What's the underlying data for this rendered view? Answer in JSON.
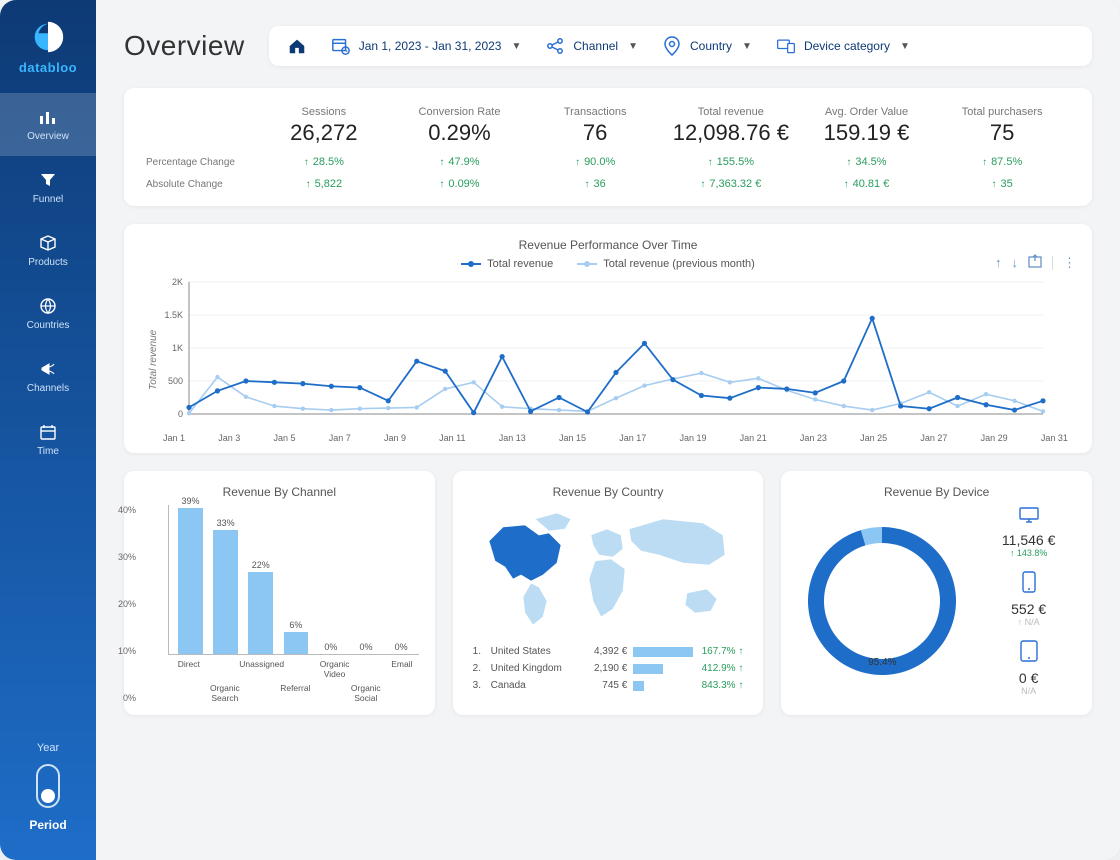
{
  "brand": {
    "name": "databloo"
  },
  "sidebar": {
    "items": [
      {
        "label": "Overview"
      },
      {
        "label": "Funnel"
      },
      {
        "label": "Products"
      },
      {
        "label": "Countries"
      },
      {
        "label": "Channels"
      },
      {
        "label": "Time"
      }
    ],
    "switch_top": "Year",
    "switch_bottom": "Period"
  },
  "page_title": "Overview",
  "filters": {
    "date_range": "Jan 1, 2023 - Jan 31, 2023",
    "channel_label": "Channel",
    "country_label": "Country",
    "device_label": "Device category"
  },
  "kpis": [
    {
      "label": "Sessions",
      "value": "26,272",
      "pct": "28.5%",
      "abs": "5,822"
    },
    {
      "label": "Conversion Rate",
      "value": "0.29%",
      "pct": "47.9%",
      "abs": "0.09%"
    },
    {
      "label": "Transactions",
      "value": "76",
      "pct": "90.0%",
      "abs": "36"
    },
    {
      "label": "Total revenue",
      "value": "12,098.76 €",
      "pct": "155.5%",
      "abs": "7,363.32 €"
    },
    {
      "label": "Avg. Order Value",
      "value": "159.19 €",
      "pct": "34.5%",
      "abs": "40.81 €"
    },
    {
      "label": "Total purchasers",
      "value": "75",
      "pct": "87.5%",
      "abs": "35"
    }
  ],
  "kpi_row_labels": {
    "pct": "Percentage Change",
    "abs": "Absolute Change"
  },
  "line_chart": {
    "title": "Revenue Performance Over Time",
    "legend_current": "Total revenue",
    "legend_previous": "Total revenue (previous month)",
    "ylabel": "Total revenue",
    "ylim": [
      0,
      2000
    ],
    "yticks": [
      "0",
      "500",
      "1K",
      "1.5K",
      "2K"
    ],
    "xlabels": [
      "Jan 1",
      "Jan 3",
      "Jan 5",
      "Jan 7",
      "Jan 9",
      "Jan 11",
      "Jan 13",
      "Jan 15",
      "Jan 17",
      "Jan 19",
      "Jan 21",
      "Jan 23",
      "Jan 25",
      "Jan 27",
      "Jan 29",
      "Jan 31"
    ],
    "current": [
      100,
      350,
      500,
      480,
      460,
      420,
      400,
      200,
      800,
      650,
      20,
      870,
      40,
      250,
      30,
      630,
      1070,
      520,
      280,
      240,
      400,
      380,
      320,
      500,
      1450,
      120,
      80,
      250,
      140,
      60,
      200
    ],
    "previous": [
      10,
      560,
      260,
      120,
      80,
      60,
      80,
      90,
      100,
      380,
      480,
      110,
      80,
      60,
      40,
      240,
      430,
      530,
      620,
      480,
      540,
      360,
      220,
      120,
      60,
      160,
      330,
      120,
      300,
      200,
      40
    ],
    "color_current": "#1e6dc8",
    "color_previous": "#a7cdf0",
    "grid_color": "#e7e9ec",
    "background_color": "#ffffff"
  },
  "bar_chart": {
    "title": "Revenue By Channel",
    "ylim": [
      0,
      40
    ],
    "ytick_step": 10,
    "yticks": [
      "0%",
      "10%",
      "20%",
      "30%",
      "40%"
    ],
    "categories": [
      "Direct",
      "Organic Search",
      "Unassigned",
      "Referral",
      "Organic Video",
      "Organic Social",
      "Email"
    ],
    "values": [
      39,
      33,
      22,
      6,
      0,
      0,
      0
    ],
    "value_labels": [
      "39%",
      "33%",
      "22%",
      "6%",
      "0%",
      "0%",
      "0%"
    ],
    "bar_color": "#8cc6f2"
  },
  "map_chart": {
    "title": "Revenue By Country",
    "rows": [
      {
        "rank": "1.",
        "name": "United States",
        "value": "4,392 €",
        "bar": 100,
        "change": "167.7% ↑"
      },
      {
        "rank": "2.",
        "name": "United Kingdom",
        "value": "2,190 €",
        "bar": 50,
        "change": "412.9% ↑"
      },
      {
        "rank": "3.",
        "name": "Canada",
        "value": "745 €",
        "bar": 17,
        "change": "843.3% ↑"
      }
    ],
    "land_color": "#bcdcf4",
    "highlight_color": "#1e6dc8"
  },
  "device_chart": {
    "title": "Revenue By Device",
    "donut_main_pct": 95.4,
    "donut_label": "95.4%",
    "donut_color_main": "#1e6dc8",
    "donut_color_rest": "#8cc6f2",
    "items": [
      {
        "value": "11,546 €",
        "change": "↑ 143.8%",
        "na": false
      },
      {
        "value": "552 €",
        "change": "↑ N/A",
        "na": true
      },
      {
        "value": "0 €",
        "change": "N/A",
        "na": true
      }
    ]
  },
  "colors": {
    "positive": "#2a9d5d",
    "brand": "#1e6dc8",
    "sidebar_top": "#0d3a75",
    "sidebar_bottom": "#1e6dc8"
  }
}
